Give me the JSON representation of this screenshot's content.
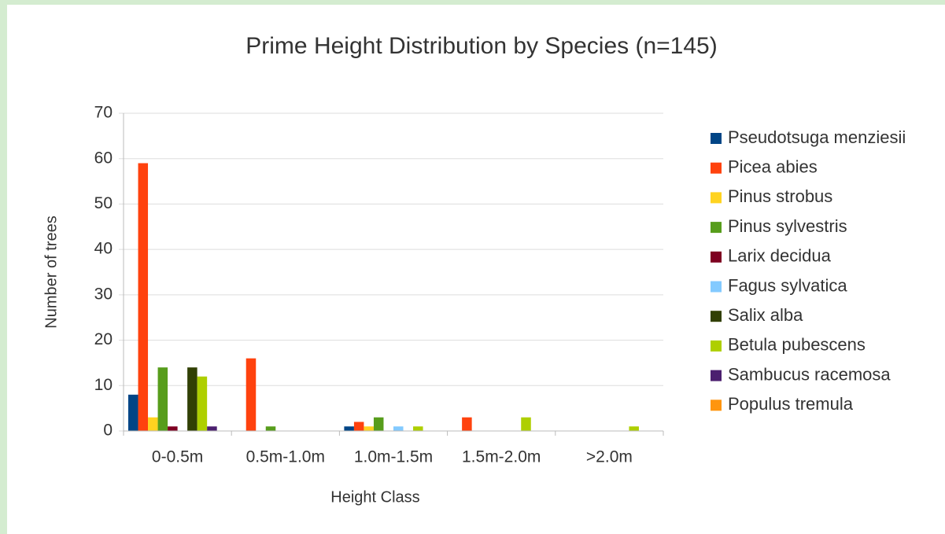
{
  "chart_data": {
    "type": "bar",
    "title": "Prime Height Distribution by Species (n=145)",
    "xlabel": "Height Class",
    "ylabel": "Number of trees",
    "categories": [
      "0-0.5m",
      "0.5m-1.0m",
      "1.0m-1.5m",
      "1.5m-2.0m",
      ">2.0m"
    ],
    "series": [
      {
        "name": "Pseudotsuga menziesii",
        "color": "#004586",
        "values": [
          8,
          0,
          1,
          0,
          0
        ]
      },
      {
        "name": "Picea abies",
        "color": "#ff420e",
        "values": [
          59,
          16,
          2,
          3,
          0
        ]
      },
      {
        "name": "Pinus strobus",
        "color": "#ffd320",
        "values": [
          3,
          0,
          1,
          0,
          0
        ]
      },
      {
        "name": "Pinus sylvestris",
        "color": "#579d1c",
        "values": [
          14,
          1,
          3,
          0,
          0
        ]
      },
      {
        "name": "Larix decidua",
        "color": "#7e0021",
        "values": [
          1,
          0,
          0,
          0,
          0
        ]
      },
      {
        "name": "Fagus sylvatica",
        "color": "#83caff",
        "values": [
          0,
          0,
          1,
          0,
          0
        ]
      },
      {
        "name": "Salix alba",
        "color": "#314004",
        "values": [
          14,
          0,
          0,
          0,
          0
        ]
      },
      {
        "name": "Betula pubescens",
        "color": "#aecf00",
        "values": [
          12,
          0,
          1,
          3,
          1
        ]
      },
      {
        "name": "Sambucus racemosa",
        "color": "#4b1f6f",
        "values": [
          1,
          0,
          0,
          0,
          0
        ]
      },
      {
        "name": "Populus tremula",
        "color": "#ff950e",
        "values": [
          0,
          0,
          0,
          0,
          0
        ]
      }
    ],
    "ylim": [
      0,
      70
    ],
    "yticks": [
      0,
      10,
      20,
      30,
      40,
      50,
      60,
      70
    ],
    "grid": true,
    "legend": "right"
  }
}
